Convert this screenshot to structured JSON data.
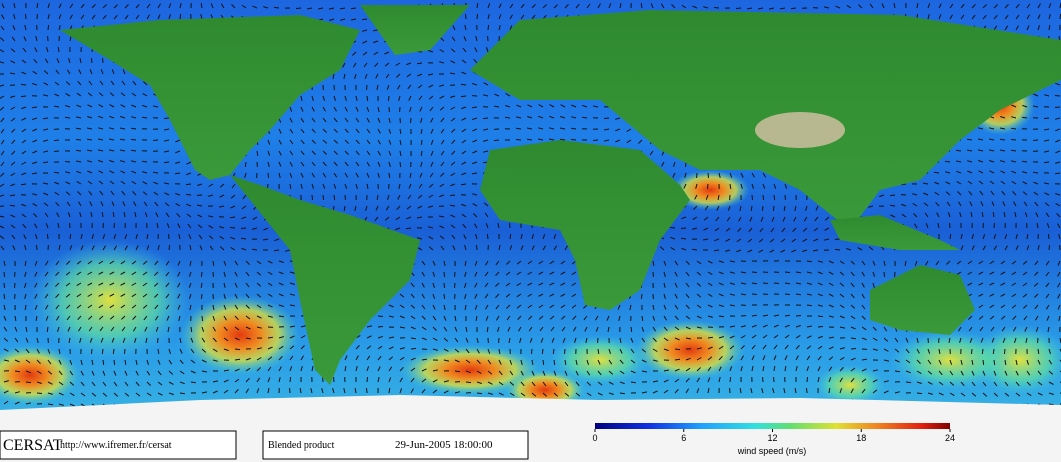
{
  "footer": {
    "logo": "CERSAT",
    "url": "http://www.ifremer.fr/cersat",
    "product": "Blended product",
    "datetime": "29-Jun-2005 18:00:00"
  },
  "colorbar": {
    "range": [
      0,
      24
    ],
    "ticks": [
      0,
      6,
      12,
      18,
      24
    ],
    "label": "wind speed (m/s)"
  }
}
